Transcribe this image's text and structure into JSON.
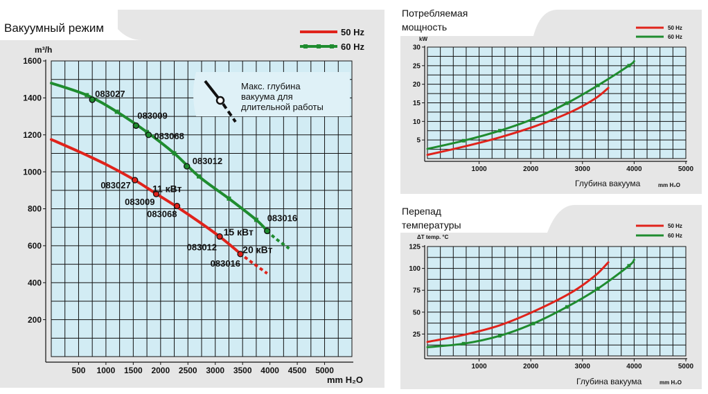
{
  "colors": {
    "red": "#e0231b",
    "green": "#1f8c2f",
    "grid_bg": "#d2ecf4",
    "panel_bg": "#e6e6e6"
  },
  "legend": {
    "s50": "50 Hz",
    "s60": "60 Hz"
  },
  "chart_data": [
    {
      "type": "line",
      "title": "Вакуумный режим",
      "ylabel": "m³/h",
      "xlabel": "mm H₂O",
      "xlim": [
        0,
        5500
      ],
      "ylim": [
        0,
        1600
      ],
      "xticks": [
        500,
        1000,
        1500,
        2000,
        2500,
        3000,
        3500,
        4000,
        4500,
        5000
      ],
      "yticks": [
        200,
        400,
        600,
        800,
        1000,
        1200,
        1400,
        1600
      ],
      "annotation": "Макс. глубина вакуума для длительной работы",
      "series": [
        {
          "name": "50 Hz",
          "color": "red",
          "x": [
            0,
            500,
            1000,
            1500,
            1900,
            2300,
            2700,
            3100,
            3450
          ],
          "y": [
            1175,
            1110,
            1040,
            960,
            885,
            810,
            730,
            645,
            560
          ],
          "ext_x": [
            3450,
            3600,
            3950
          ],
          "ext_y": [
            560,
            525,
            450
          ]
        },
        {
          "name": "60 Hz",
          "color": "green",
          "x": [
            0,
            650,
            1200,
            1750,
            2250,
            2700,
            3250,
            3750,
            3950
          ],
          "y": [
            1480,
            1415,
            1325,
            1215,
            1100,
            975,
            855,
            740,
            680
          ],
          "ext_x": [
            3950,
            4100,
            4350
          ],
          "ext_y": [
            680,
            640,
            585
          ]
        }
      ],
      "points": [
        {
          "series": "60 Hz",
          "x": 750,
          "y": 1390,
          "label": "083027"
        },
        {
          "series": "60 Hz",
          "x": 1550,
          "y": 1250,
          "label": "083009"
        },
        {
          "series": "60 Hz",
          "x": 1780,
          "y": 1200,
          "label": "083068"
        },
        {
          "series": "60 Hz",
          "x": 2480,
          "y": 1030,
          "label": "083012"
        },
        {
          "series": "60 Hz",
          "x": 3950,
          "y": 680,
          "label": "083016"
        },
        {
          "series": "50 Hz",
          "x": 1530,
          "y": 955,
          "label": "083027"
        },
        {
          "series": "50 Hz",
          "x": 1920,
          "y": 880,
          "label": "083009"
        },
        {
          "series": "50 Hz",
          "x": 2300,
          "y": 815,
          "label": "083068"
        },
        {
          "series": "50 Hz",
          "x": 3080,
          "y": 650,
          "label": "083012"
        },
        {
          "series": "50 Hz",
          "x": 3460,
          "y": 555,
          "label": "083016"
        }
      ],
      "power_labels": [
        {
          "x": 1850,
          "y": 890,
          "text": "11 кВт"
        },
        {
          "x": 3150,
          "y": 655,
          "text": "15 кВт"
        },
        {
          "x": 3500,
          "y": 560,
          "text": "20 кВт"
        }
      ]
    },
    {
      "type": "line",
      "title": "Потребляемая мощность",
      "ylabel": "kW",
      "xlabel": "Глубина вакуума",
      "xunit": "mm H₂O",
      "xlim": [
        0,
        5000
      ],
      "ylim": [
        0,
        30
      ],
      "xticks": [
        1000,
        2000,
        3000,
        4000,
        5000
      ],
      "yticks": [
        5,
        10,
        15,
        20,
        25,
        30
      ],
      "series": [
        {
          "name": "50 Hz",
          "color": "red",
          "x": [
            0,
            700,
            1400,
            2100,
            2800,
            3250,
            3500
          ],
          "y": [
            1.0,
            3.2,
            5.7,
            8.8,
            12.7,
            16.2,
            19.0
          ]
        },
        {
          "name": "60 Hz",
          "color": "green",
          "x": [
            0,
            700,
            1400,
            2050,
            2700,
            3300,
            3900,
            4000
          ],
          "y": [
            2.6,
            4.8,
            7.5,
            10.7,
            14.9,
            19.7,
            25.0,
            26.2
          ]
        }
      ]
    },
    {
      "type": "line",
      "title": "Перепад температуры",
      "ylabel": "ΔT  temp. °C",
      "xlabel": "Глубина вакуума",
      "xunit": "mm H₂O",
      "xlim": [
        0,
        5000
      ],
      "ylim": [
        0,
        125
      ],
      "xticks": [
        1000,
        2000,
        3000,
        4000,
        5000
      ],
      "yticks": [
        25,
        50,
        75,
        100,
        125
      ],
      "series": [
        {
          "name": "50 Hz",
          "color": "red",
          "x": [
            0,
            700,
            1400,
            2100,
            2800,
            3250,
            3500
          ],
          "y": [
            16,
            24,
            35,
            52,
            73,
            92,
            107
          ]
        },
        {
          "name": "60 Hz",
          "color": "green",
          "x": [
            0,
            700,
            1400,
            2050,
            2700,
            3300,
            3900,
            4000
          ],
          "y": [
            10,
            14,
            23,
            37,
            56,
            77,
            103,
            110
          ]
        }
      ]
    }
  ]
}
